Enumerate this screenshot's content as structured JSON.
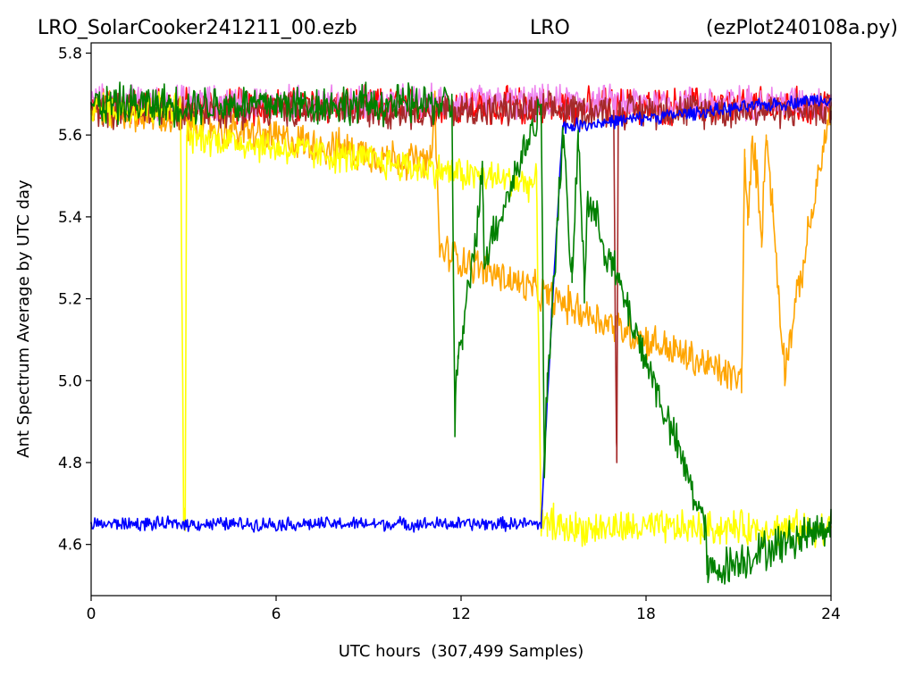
{
  "header": {
    "file_name": "LRO_SolarCooker241211_00.ezb",
    "site": "LRO",
    "program": "(ezPlot240108a.py)"
  },
  "chart_data": {
    "type": "line",
    "title": "LRO_SolarCooker241211_00.ezb LRO (ezPlot240108a.py)",
    "xlabel": "UTC hours  (307,499 Samples)",
    "ylabel": "Ant Spectrum Average by UTC day",
    "xlim": [
      0,
      24
    ],
    "ylim": [
      4.475,
      5.825
    ],
    "xticks": [
      0,
      6,
      12,
      18,
      24
    ],
    "yticks": [
      4.6,
      4.8,
      5.0,
      5.2,
      5.4,
      5.6,
      5.8
    ],
    "xtick_labels": [
      "0",
      "6",
      "12",
      "18",
      "24"
    ],
    "ytick_labels": [
      "4.6",
      "4.8",
      "5.0",
      "5.2",
      "5.4",
      "5.6",
      "5.8"
    ],
    "grid": false,
    "legend": "none",
    "series": [
      {
        "color": "#ff0000",
        "band_center": 5.67,
        "band_half_width": 0.055,
        "x": [
          0,
          24
        ],
        "y": [
          5.67,
          5.67
        ]
      },
      {
        "color": "#ee82ee",
        "band_center": 5.68,
        "band_half_width": 0.05,
        "x": [
          0,
          24
        ],
        "y": [
          5.68,
          5.68
        ]
      },
      {
        "color": "#ffa500",
        "band_center": 5.67,
        "band_half_width": 0.055,
        "x": [
          0,
          11.0,
          11.15,
          11.3,
          21.1,
          21.2,
          21.3,
          21.45,
          21.6,
          21.75,
          21.9,
          22.1,
          22.3,
          22.5,
          24
        ],
        "y": [
          5.67,
          5.53,
          5.67,
          5.32,
          5.0,
          5.55,
          5.38,
          5.58,
          5.5,
          5.36,
          5.6,
          5.43,
          5.22,
          5.03,
          5.67
        ]
      },
      {
        "color": "#a52a2a",
        "band_center": 5.66,
        "band_half_width": 0.05,
        "x": [
          0,
          16.95,
          17.0,
          17.05,
          17.1,
          24
        ],
        "y": [
          5.66,
          5.66,
          5.16,
          4.81,
          5.66,
          5.66
        ]
      },
      {
        "color": "#ffff00",
        "band_center": 5.665,
        "band_half_width": 0.05,
        "x": [
          0,
          2.9,
          3.0,
          3.05,
          3.1,
          14.45,
          14.6,
          14.8,
          15.0,
          15.2,
          24
        ],
        "y": [
          5.665,
          5.665,
          4.67,
          4.65,
          5.6,
          5.48,
          4.65,
          4.64,
          4.66,
          4.64,
          4.64
        ]
      },
      {
        "color": "#0000ff",
        "band_center": 4.65,
        "band_half_width": 0.02,
        "x": [
          0,
          14.6,
          15.0,
          15.3,
          24
        ],
        "y": [
          4.65,
          4.65,
          5.25,
          5.62,
          5.69
        ]
      },
      {
        "color": "#008000",
        "band_center": 5.675,
        "band_half_width": 0.06,
        "x": [
          0,
          11.7,
          11.8,
          11.9,
          12.05,
          12.7,
          12.75,
          14.6,
          14.7,
          14.8,
          15.3,
          15.6,
          15.8,
          16.0,
          16.1,
          19.9,
          20.0,
          24
        ],
        "y": [
          5.675,
          5.675,
          4.9,
          5.06,
          5.1,
          5.5,
          5.3,
          5.675,
          4.78,
          5.0,
          5.6,
          5.24,
          5.6,
          5.23,
          5.45,
          4.65,
          4.53,
          4.65
        ]
      }
    ]
  }
}
